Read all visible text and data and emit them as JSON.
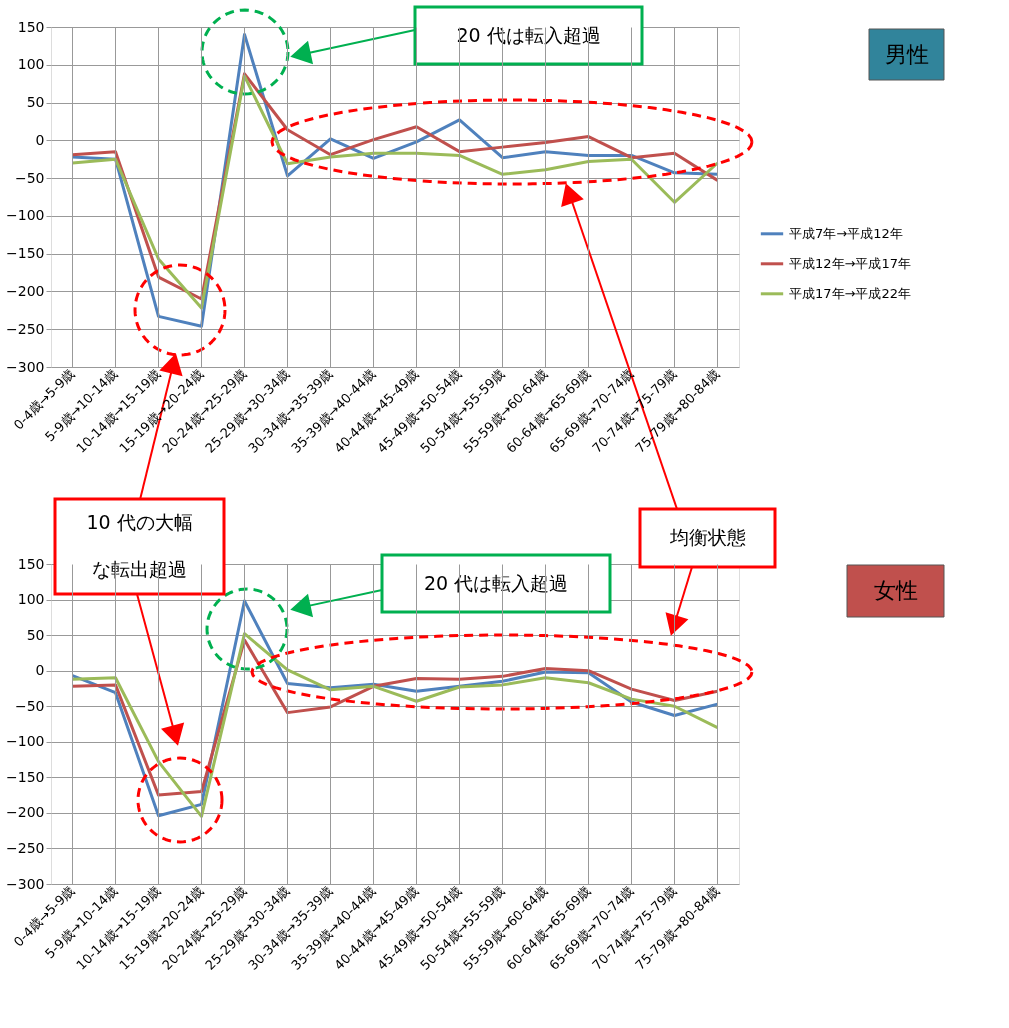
{
  "chart_data": [
    {
      "type": "line",
      "categories": [
        "0-4歳→5-9歳",
        "5-9歳→10-14歳",
        "10-14歳→15-19歳",
        "15-19歳→20-24歳",
        "20-24歳→25-29歳",
        "25-29歳→30-34歳",
        "30-34歳→35-39歳",
        "35-39歳→40-44歳",
        "40-44歳→45-49歳",
        "45-49歳→50-54歳",
        "50-54歳→55-59歳",
        "55-59歳→60-64歳",
        "60-64歳→65-69歳",
        "65-69歳→70-74歳",
        "70-74歳→75-79歳",
        "75-79歳→80-84歳"
      ],
      "series": [
        {
          "name": "平成7年→平成12年",
          "color": "#4f81bd",
          "values": [
            -22,
            -25,
            -233,
            -246,
            140,
            -47,
            2,
            -24,
            -2,
            27,
            -23,
            -15,
            -20,
            -20,
            -43,
            -45
          ]
        },
        {
          "name": "平成12年→平成17年",
          "color": "#c0504d",
          "values": [
            -19,
            -15,
            -181,
            -210,
            88,
            14,
            -19,
            1,
            18,
            -15,
            -9,
            -3,
            5,
            -23,
            -17,
            -53
          ]
        },
        {
          "name": "平成17年→平成22年",
          "color": "#9bbb59",
          "values": [
            -30,
            -25,
            -157,
            -222,
            85,
            -31,
            -22,
            -17,
            -17,
            -20,
            -45,
            -39,
            -28,
            -25,
            -82,
            -30
          ]
        }
      ],
      "ylim": [
        -300,
        150
      ],
      "yticks": [
        -300,
        -250,
        -200,
        -150,
        -100,
        -50,
        0,
        50,
        100,
        150
      ],
      "grid": true,
      "legend": "right",
      "annotations": [
        "男性",
        "20 代は転入超過"
      ]
    },
    {
      "type": "line",
      "categories": [
        "0-4歳→5-9歳",
        "5-9歳→10-14歳",
        "10-14歳→15-19歳",
        "15-19歳→20-24歳",
        "20-24歳→25-29歳",
        "25-29歳→30-34歳",
        "30-34歳→35-39歳",
        "35-39歳→40-44歳",
        "40-44歳→45-49歳",
        "45-49歳→50-54歳",
        "50-54歳→55-59歳",
        "55-59歳→60-64歳",
        "60-64歳→65-69歳",
        "65-69歳→70-74歳",
        "70-74歳→75-79歳",
        "75-79歳→80-84歳"
      ],
      "series": [
        {
          "name": "平成7年→平成12年",
          "color": "#4f81bd",
          "values": [
            -7,
            -31,
            -204,
            -188,
            98,
            -18,
            -24,
            -19,
            -29,
            -22,
            -15,
            -2,
            -3,
            -44,
            -63,
            -47
          ]
        },
        {
          "name": "平成12年→平成17年",
          "color": "#c0504d",
          "values": [
            -22,
            -20,
            -175,
            -170,
            43,
            -59,
            -51,
            -22,
            -11,
            -12,
            -8,
            3,
            0,
            -26,
            -42,
            -29
          ]
        },
        {
          "name": "平成17年→平成22年",
          "color": "#9bbb59",
          "values": [
            -12,
            -10,
            -128,
            -205,
            52,
            1,
            -27,
            -22,
            -43,
            -23,
            -20,
            -10,
            -17,
            -40,
            -50,
            -80
          ]
        }
      ],
      "ylim": [
        -300,
        150
      ],
      "yticks": [
        -300,
        -250,
        -200,
        -150,
        -100,
        -50,
        0,
        50,
        100,
        150
      ],
      "grid": true,
      "legend": "right",
      "annotations": [
        "10 代の大幅な転出超過",
        "均衡状態",
        "20 代は転入超過",
        "女性"
      ]
    }
  ]
}
